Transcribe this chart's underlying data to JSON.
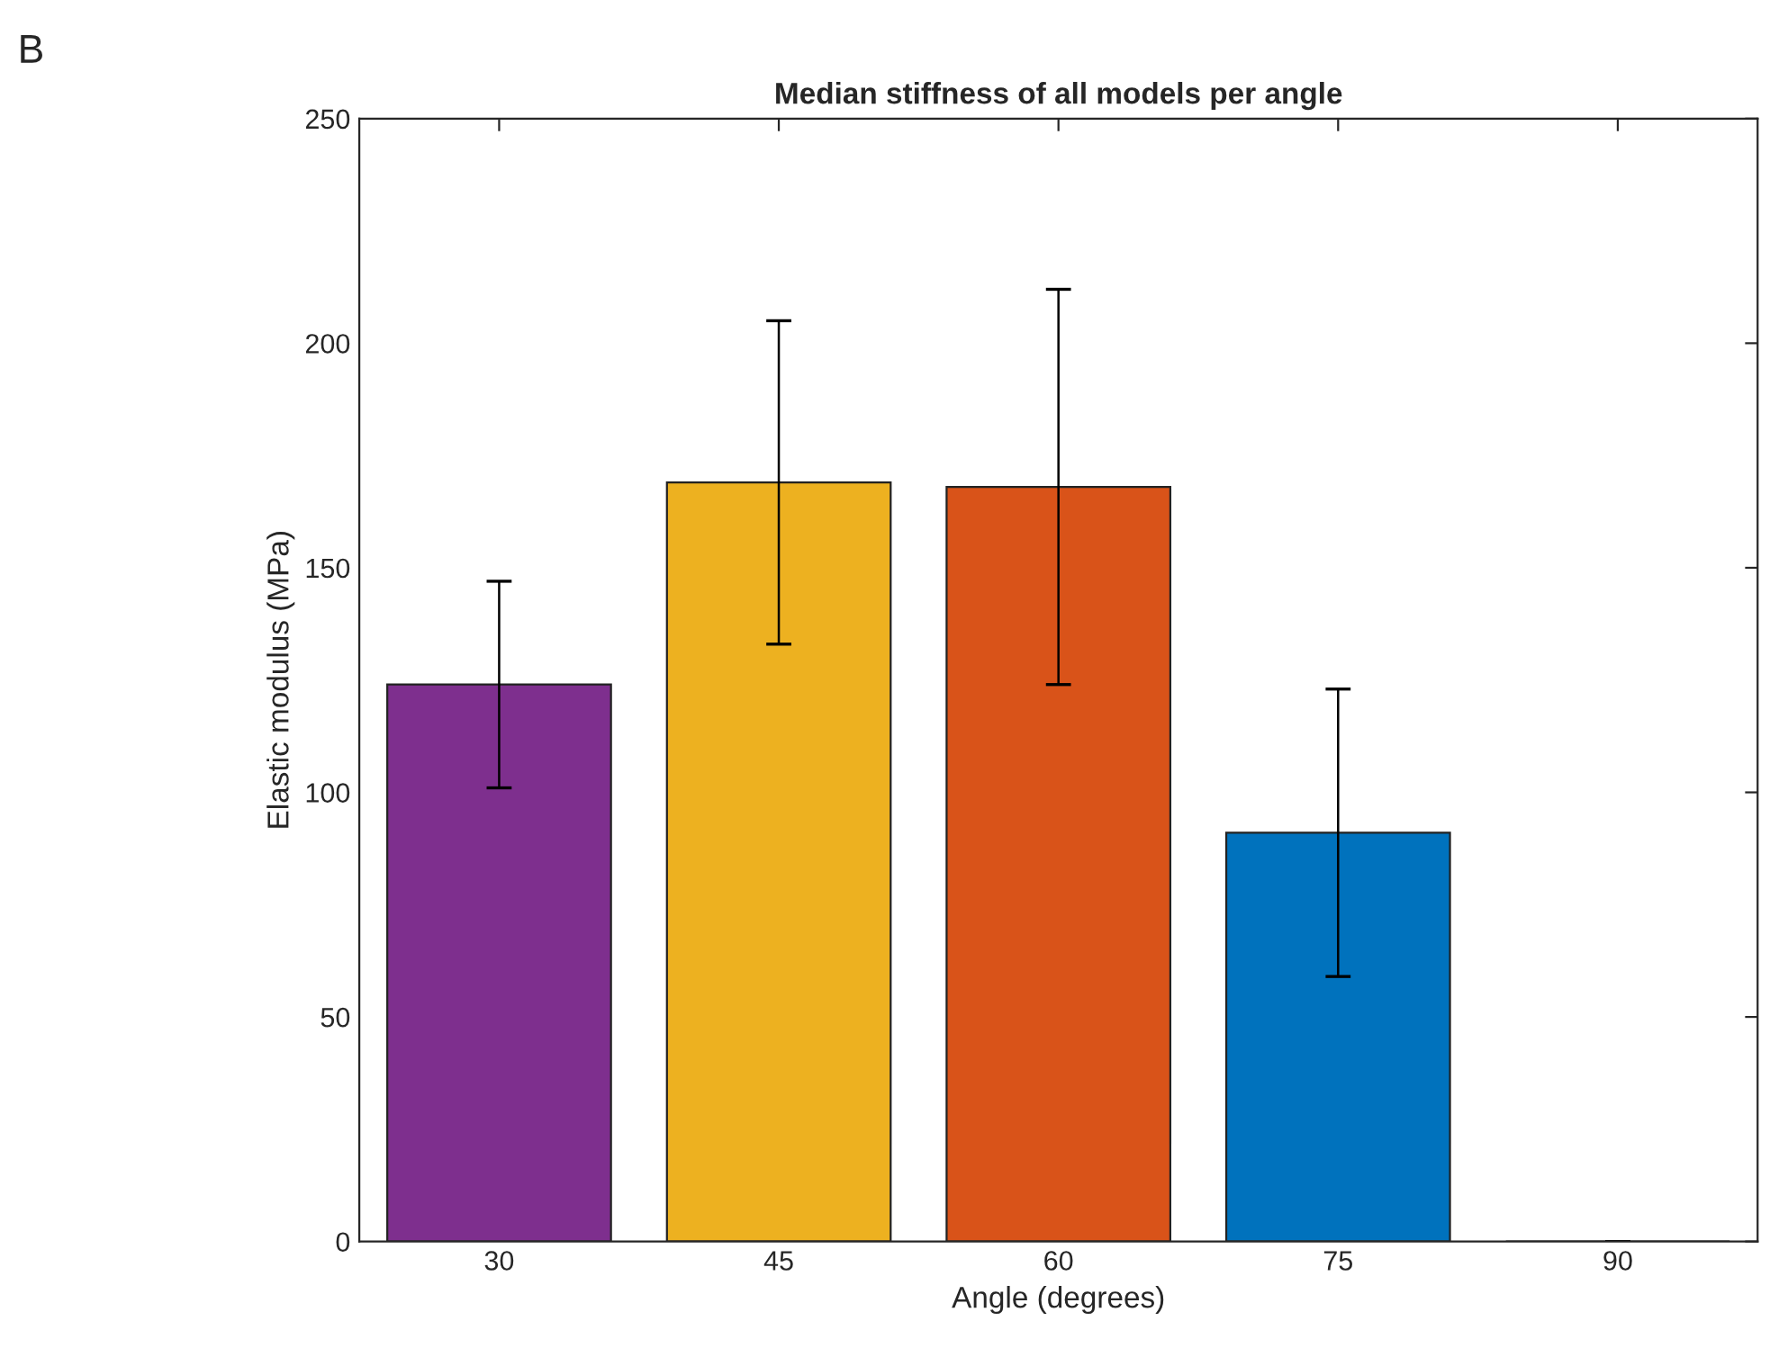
{
  "chart_data": {
    "type": "bar",
    "title": "Median stiffness of all models per angle",
    "xlabel": "Angle (degrees)",
    "ylabel": "Elastic modulus (MPa)",
    "annotations": [
      "B"
    ],
    "categories": [
      "30",
      "45",
      "60",
      "75",
      "90"
    ],
    "values": [
      124,
      169,
      168,
      91,
      0
    ],
    "colors": [
      "#7e2f8e",
      "#edb120",
      "#d95319",
      "#0072bd",
      "#222222"
    ],
    "errors": [
      [
        101,
        147
      ],
      [
        133,
        205
      ],
      [
        124,
        212
      ],
      [
        59,
        123
      ],
      [
        0,
        0
      ]
    ],
    "ylim": [
      0,
      250
    ],
    "yticks": [
      0,
      50,
      100,
      150,
      200,
      250
    ],
    "grid": false
  }
}
